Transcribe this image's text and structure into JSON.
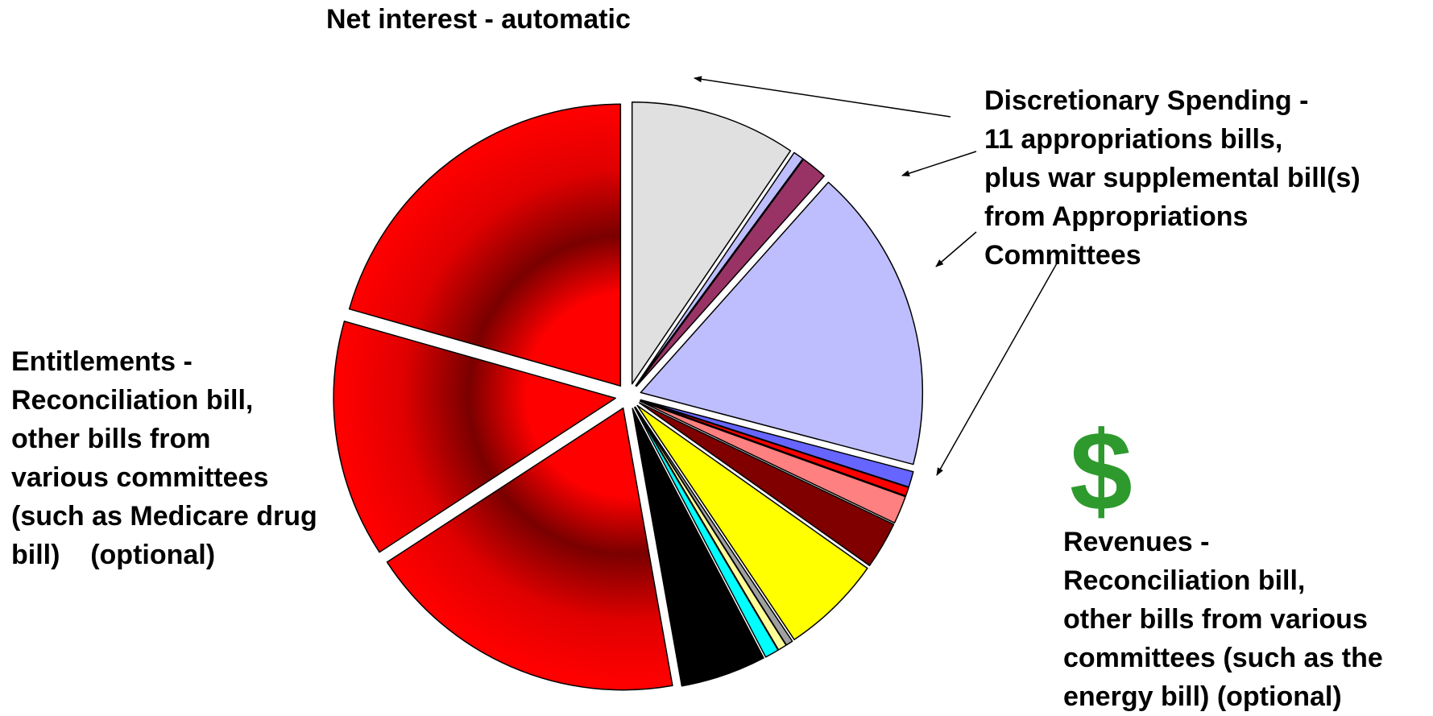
{
  "labels": {
    "net_interest": "Net interest - automatic",
    "discretionary": [
      "Discretionary Spending -",
      "11 appropriations bills,",
      "plus war supplemental bill(s)",
      "from Appropriations",
      "Committees"
    ],
    "entitlements": [
      "Entitlements -",
      "Reconciliation bill,",
      "other bills from",
      "various committees",
      "(such as Medicare drug",
      "bill)    (optional)"
    ],
    "revenues": [
      "Revenues -",
      "Reconciliation bill,",
      "other bills from various",
      "committees (such as the",
      "energy bill) (optional)"
    ],
    "dollar_symbol": "$"
  },
  "colors": {
    "dollar": "#2E9A2E",
    "net_interest": "#E0E0E0",
    "discretionary_main": "#BEBEFF",
    "entitlement_red": "#FF0000",
    "entitlement_dark": "#7A0000",
    "revenue_yellow": "#FFFF00",
    "revenue_black": "#000000",
    "revenue_cyan": "#00FFFF"
  },
  "chart_data": {
    "type": "pie",
    "title": "",
    "exploded": true,
    "slices": [
      {
        "value": 9.5,
        "color": "#E0E0E0",
        "gradient": false
      },
      {
        "value": 0.6,
        "color": "#BEBEFF",
        "gradient": false
      },
      {
        "value": 1.5,
        "color": "#993366",
        "gradient": false
      },
      {
        "value": 17.5,
        "color": "#BEBEFF",
        "gradient": false
      },
      {
        "value": 0.9,
        "color": "#6666FF",
        "gradient": false
      },
      {
        "value": 0.5,
        "color": "#FF0000",
        "gradient": false
      },
      {
        "value": 1.6,
        "color": "#FF8080",
        "gradient": false
      },
      {
        "value": 2.7,
        "color": "#800000",
        "gradient": false
      },
      {
        "value": 5.8,
        "color": "#FFFF00",
        "gradient": false
      },
      {
        "value": 0.4,
        "color": "#A0A0A0",
        "gradient": false
      },
      {
        "value": 0.5,
        "color": "#FFFF99",
        "gradient": false
      },
      {
        "value": 0.8,
        "color": "#00FFFF",
        "gradient": false
      },
      {
        "value": 4.9,
        "color": "#000000",
        "gradient": false
      },
      {
        "value": 18.6,
        "color": "#FF0000",
        "gradient": true
      },
      {
        "value": 13.6,
        "color": "#FF0000",
        "gradient": true
      },
      {
        "value": 20.6,
        "color": "#FF0000",
        "gradient": true
      }
    ]
  }
}
